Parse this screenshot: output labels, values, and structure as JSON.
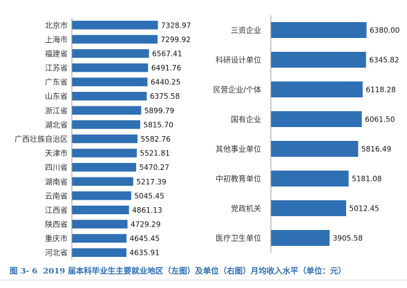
{
  "caption": {
    "figure_no": "图 3- 6",
    "text": "2019 届本科毕业生主要就业地区（左图）及单位（右图）月均收入水平（单位：元）"
  },
  "colors": {
    "bar": "#2f6fb3",
    "caption": "#2f6fb3"
  },
  "chart_data": [
    {
      "type": "bar",
      "orientation": "horizontal",
      "categories": [
        "北京市",
        "上海市",
        "福建省",
        "江苏省",
        "广东省",
        "山东省",
        "浙江省",
        "湖北省",
        "广西壮族自治区",
        "天津市",
        "四川省",
        "湖南省",
        "云南省",
        "江西省",
        "陕西省",
        "重庆市",
        "河北省"
      ],
      "values": [
        7328.97,
        7299.92,
        6567.41,
        6491.76,
        6440.25,
        6375.58,
        5899.79,
        5815.7,
        5582.76,
        5521.81,
        5470.27,
        5217.39,
        5045.45,
        4861.13,
        4729.29,
        4645.45,
        4635.91
      ],
      "value_labels": [
        "7328.97",
        "7299.92",
        "6567.41",
        "6491.76",
        "6440.25",
        "6375.58",
        "5899.79",
        "5815.70",
        "5582.76",
        "5521.81",
        "5470.27",
        "5217.39",
        "5045.45",
        "4861.13",
        "4729.29",
        "4645.45",
        "4635.91"
      ],
      "title": "",
      "xlabel": "",
      "ylabel": "",
      "xlim": [
        0,
        7328.97
      ],
      "grid": false
    },
    {
      "type": "bar",
      "orientation": "horizontal",
      "categories": [
        "三资企业",
        "科研设计单位",
        "民营企业/个体",
        "国有企业",
        "其他事业单位",
        "中初教育单位",
        "党政机关",
        "医疗卫生单位"
      ],
      "values": [
        6380.0,
        6345.82,
        6118.28,
        6061.5,
        5816.49,
        5181.08,
        5012.45,
        3905.58
      ],
      "value_labels": [
        "6380.00",
        "6345.82",
        "6118.28",
        "6061.50",
        "5816.49",
        "5181.08",
        "5012.45",
        "3905.58"
      ],
      "title": "",
      "xlabel": "",
      "ylabel": "",
      "xlim": [
        0,
        6380
      ],
      "grid": false
    }
  ]
}
